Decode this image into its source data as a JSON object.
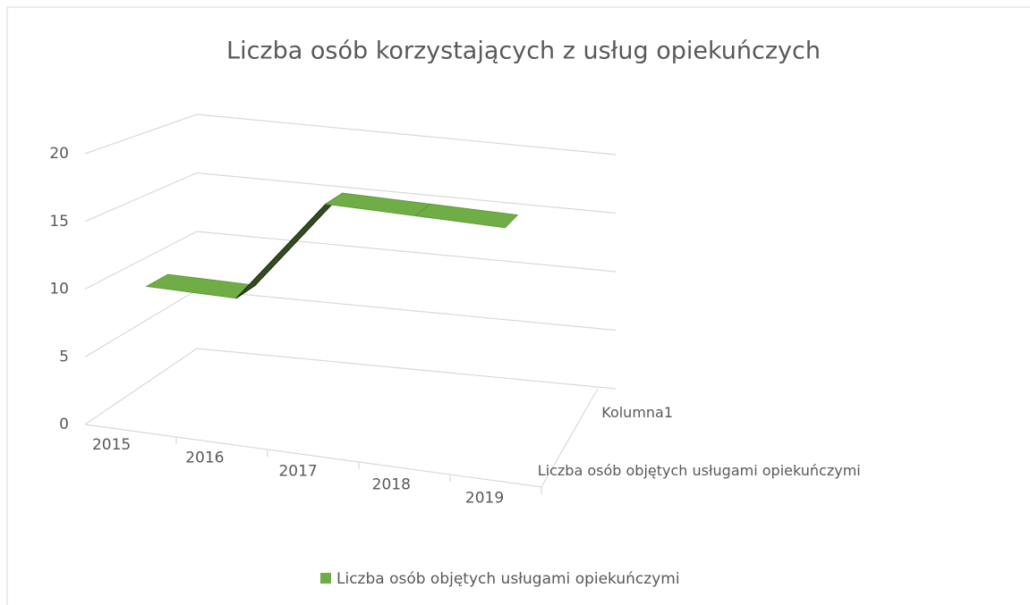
{
  "chart_data": {
    "type": "line3d",
    "title": "Liczba osób korzystających z usług opiekuńczych",
    "categories": [
      "2015",
      "2016",
      "2017",
      "2018",
      "2019"
    ],
    "depth_categories": [
      "Liczba osób objętych usługami opiekuńczymi",
      "Kolumna1"
    ],
    "series": [
      {
        "name": "Liczba osób objętych usługami opiekuńczymi",
        "color": "#70ad47",
        "values": [
          10,
          10,
          18,
          18,
          18
        ]
      }
    ],
    "ylim": [
      0,
      20
    ],
    "yticks": [
      0,
      5,
      10,
      15,
      20
    ],
    "grid": true,
    "legend": "bottom"
  }
}
